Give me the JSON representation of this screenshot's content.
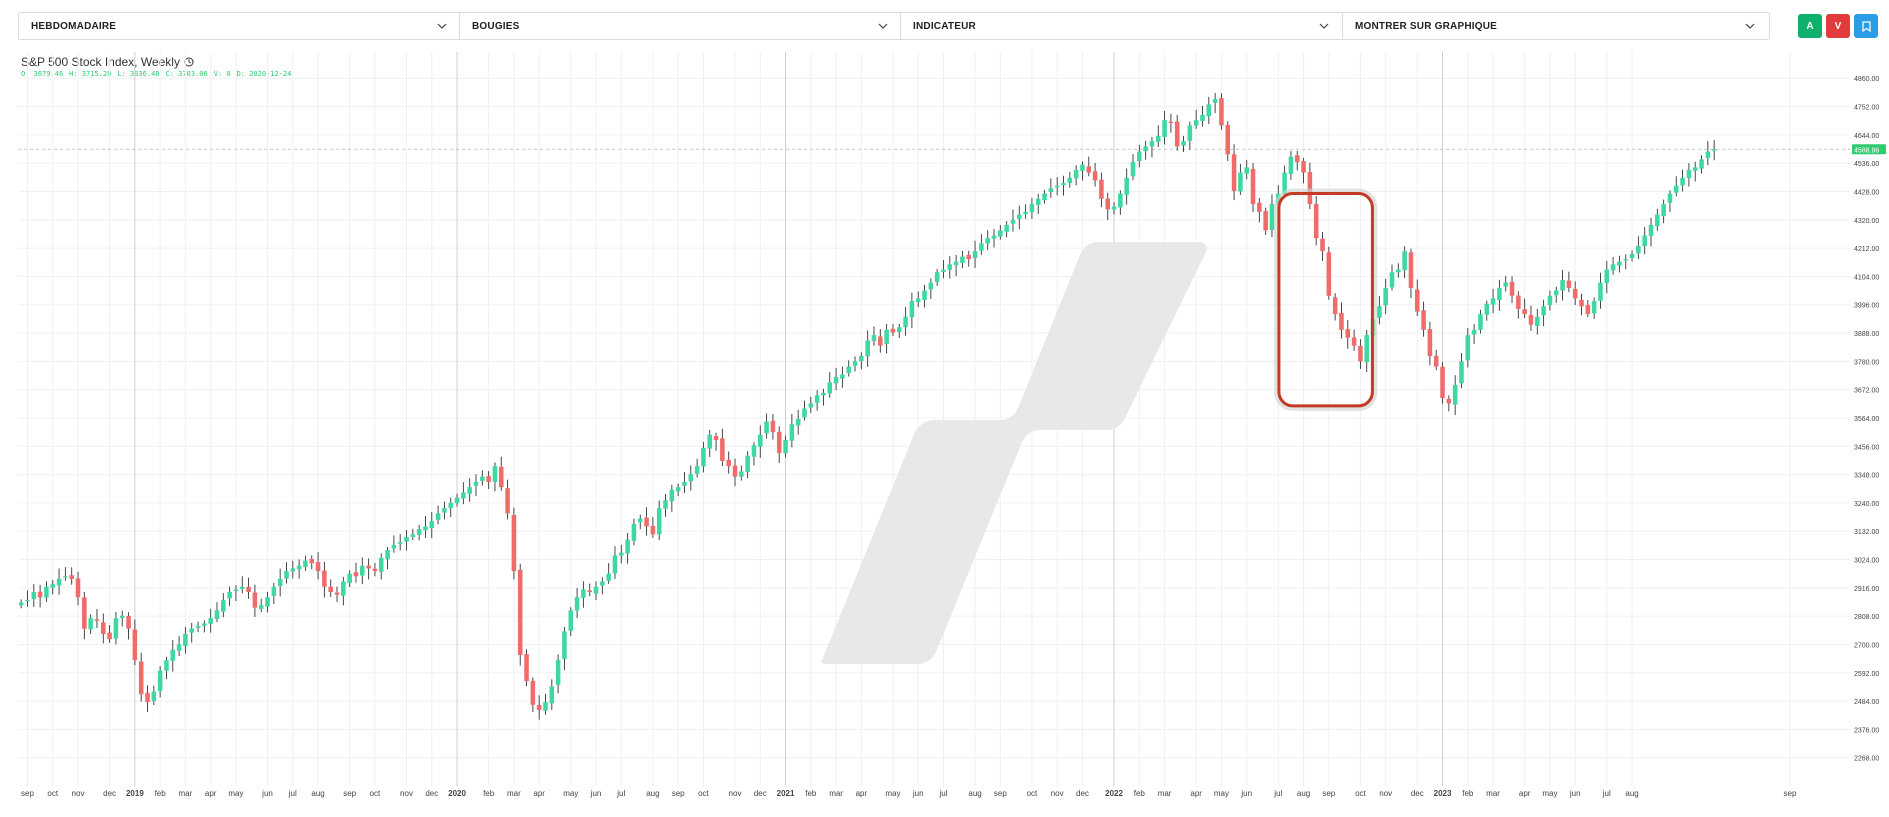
{
  "toolbar": {
    "dropdowns": [
      {
        "label": "HEBDOMADAIRE"
      },
      {
        "label": "BOUGIES"
      },
      {
        "label": "INDICATEUR"
      },
      {
        "label": "MONTRER SUR GRAPHIQUE"
      }
    ],
    "buttons": [
      {
        "label": "A",
        "color": "#0fb06b",
        "icon": "buy-button"
      },
      {
        "label": "V",
        "color": "#e23b3b",
        "icon": "sell-button"
      },
      {
        "label": "",
        "color": "#2a9de6",
        "icon": "bookmark-icon"
      }
    ]
  },
  "header": {
    "title": "S&P 500 Stock Index, Weekly",
    "clock_icon": "clock-icon",
    "ohlc": {
      "o_label": "O:",
      "o": "3679.46",
      "h_label": "H:",
      "h": "3715.20",
      "l_label": "L:",
      "l": "3636.48",
      "c_label": "C:",
      "c": "3703.06",
      "v_label": "V:",
      "v": "0",
      "d_label": "D:",
      "d": "2020-12-24"
    }
  },
  "colors": {
    "up": "#3ed9a0",
    "down": "#f16b6b",
    "highlight": "#c23b22",
    "price_badge": "#2ecc71",
    "watermark": "#e6e6e6"
  },
  "chart_data": {
    "type": "candlestick",
    "title": "S&P 500 Stock Index, Weekly",
    "current_price": "4588.96",
    "ylim": [
      2160,
      4960
    ],
    "y_ticks": [
      "4860.00",
      "4752.00",
      "4644.00",
      "4536.00",
      "4428.00",
      "4320.00",
      "4212.00",
      "4104.00",
      "3996.00",
      "3888.00",
      "3780.00",
      "3672.00",
      "3564.00",
      "3456.00",
      "3348.00",
      "3240.00",
      "3132.00",
      "3024.00",
      "2916.00",
      "2808.00",
      "2700.00",
      "2592.00",
      "2484.00",
      "2376.00",
      "2268.00"
    ],
    "x_ticks": [
      {
        "label": "sep",
        "week": 1
      },
      {
        "label": "oct",
        "week": 5
      },
      {
        "label": "nov",
        "week": 9
      },
      {
        "label": "dec",
        "week": 14
      },
      {
        "label": "2019",
        "week": 18,
        "year": true
      },
      {
        "label": "feb",
        "week": 22
      },
      {
        "label": "mar",
        "week": 26
      },
      {
        "label": "apr",
        "week": 30
      },
      {
        "label": "may",
        "week": 34
      },
      {
        "label": "jun",
        "week": 39
      },
      {
        "label": "jul",
        "week": 43
      },
      {
        "label": "aug",
        "week": 47
      },
      {
        "label": "sep",
        "week": 52
      },
      {
        "label": "oct",
        "week": 56
      },
      {
        "label": "nov",
        "week": 61
      },
      {
        "label": "dec",
        "week": 65
      },
      {
        "label": "2020",
        "week": 69,
        "year": true
      },
      {
        "label": "feb",
        "week": 74
      },
      {
        "label": "mar",
        "week": 78
      },
      {
        "label": "apr",
        "week": 82
      },
      {
        "label": "may",
        "week": 87
      },
      {
        "label": "jun",
        "week": 91
      },
      {
        "label": "jul",
        "week": 95
      },
      {
        "label": "aug",
        "week": 100
      },
      {
        "label": "sep",
        "week": 104
      },
      {
        "label": "oct",
        "week": 108
      },
      {
        "label": "nov",
        "week": 113
      },
      {
        "label": "dec",
        "week": 117
      },
      {
        "label": "2021",
        "week": 121,
        "year": true
      },
      {
        "label": "feb",
        "week": 125
      },
      {
        "label": "mar",
        "week": 129
      },
      {
        "label": "apr",
        "week": 133
      },
      {
        "label": "may",
        "week": 138
      },
      {
        "label": "jun",
        "week": 142
      },
      {
        "label": "jul",
        "week": 146
      },
      {
        "label": "aug",
        "week": 151
      },
      {
        "label": "sep",
        "week": 155
      },
      {
        "label": "oct",
        "week": 160
      },
      {
        "label": "nov",
        "week": 164
      },
      {
        "label": "dec",
        "week": 168
      },
      {
        "label": "2022",
        "week": 173,
        "year": true
      },
      {
        "label": "feb",
        "week": 177
      },
      {
        "label": "mar",
        "week": 181
      },
      {
        "label": "apr",
        "week": 186
      },
      {
        "label": "may",
        "week": 190
      },
      {
        "label": "jun",
        "week": 194
      },
      {
        "label": "jul",
        "week": 199
      },
      {
        "label": "aug",
        "week": 203
      },
      {
        "label": "sep",
        "week": 207
      },
      {
        "label": "oct",
        "week": 212
      },
      {
        "label": "nov",
        "week": 216
      },
      {
        "label": "dec",
        "week": 221
      },
      {
        "label": "2023",
        "week": 225,
        "year": true
      },
      {
        "label": "feb",
        "week": 229
      },
      {
        "label": "mar",
        "week": 233
      },
      {
        "label": "apr",
        "week": 238
      },
      {
        "label": "may",
        "week": 242
      },
      {
        "label": "jun",
        "week": 246
      },
      {
        "label": "jul",
        "week": 251
      },
      {
        "label": "aug",
        "week": 255
      },
      {
        "label": "sep",
        "week": 280
      }
    ],
    "highlight_weeks": [
      200,
      213
    ],
    "highlight_range": [
      3610,
      4420
    ],
    "close_series": [
      2860,
      2870,
      2900,
      2880,
      2920,
      2930,
      2950,
      2960,
      2950,
      2880,
      2760,
      2800,
      2790,
      2740,
      2720,
      2800,
      2810,
      2760,
      2640,
      2510,
      2480,
      2520,
      2600,
      2640,
      2680,
      2700,
      2740,
      2760,
      2770,
      2780,
      2800,
      2830,
      2870,
      2900,
      2910,
      2920,
      2900,
      2840,
      2850,
      2880,
      2920,
      2950,
      2980,
      2990,
      3000,
      3020,
      3010,
      2980,
      2920,
      2900,
      2890,
      2940,
      2970,
      2960,
      3000,
      2990,
      2980,
      3030,
      3060,
      3080,
      3090,
      3110,
      3120,
      3140,
      3150,
      3170,
      3200,
      3220,
      3240,
      3260,
      3280,
      3300,
      3320,
      3340,
      3320,
      3380,
      3300,
      3200,
      2980,
      2660,
      2560,
      2470,
      2450,
      2480,
      2540,
      2640,
      2750,
      2830,
      2880,
      2910,
      2900,
      2920,
      2940,
      2970,
      3040,
      3050,
      3100,
      3160,
      3180,
      3150,
      3120,
      3220,
      3250,
      3290,
      3300,
      3320,
      3350,
      3380,
      3450,
      3500,
      3480,
      3400,
      3380,
      3340,
      3360,
      3420,
      3460,
      3500,
      3550,
      3510,
      3430,
      3480,
      3540,
      3560,
      3600,
      3620,
      3650,
      3660,
      3700,
      3720,
      3730,
      3760,
      3780,
      3800,
      3860,
      3880,
      3840,
      3900,
      3890,
      3910,
      3950,
      4010,
      4020,
      4050,
      4080,
      4120,
      4130,
      4150,
      4160,
      4180,
      4170,
      4200,
      4230,
      4250,
      4260,
      4280,
      4300,
      4320,
      4340,
      4350,
      4380,
      4400,
      4420,
      4440,
      4450,
      4460,
      4480,
      4510,
      4530,
      4500,
      4470,
      4400,
      4360,
      4370,
      4420,
      4480,
      4540,
      4580,
      4600,
      4620,
      4640,
      4700,
      4690,
      4600,
      4620,
      4680,
      4700,
      4720,
      4760,
      4780,
      4680,
      4570,
      4430,
      4500,
      4520,
      4380,
      4350,
      4280,
      4380,
      4420,
      4500,
      4560,
      4540,
      4500,
      4380,
      4250,
      4200,
      4030,
      3960,
      3900,
      3870,
      3840,
      3780,
      3880,
      3940,
      3990,
      4060,
      4120,
      4130,
      4200,
      4060,
      3970,
      3900,
      3800,
      3760,
      3640,
      3620,
      3690,
      3780,
      3880,
      3900,
      3960,
      4000,
      4020,
      4060,
      4080,
      4030,
      3980,
      3960,
      3920,
      3950,
      3990,
      4030,
      4050,
      4090,
      4060,
      4020,
      3990,
      3960,
      4010,
      4080,
      4130,
      4150,
      4160,
      4170,
      4190,
      4220,
      4260,
      4300,
      4340,
      4380,
      4420,
      4450,
      4480,
      4510,
      4520,
      4550,
      4580,
      4589
    ]
  }
}
